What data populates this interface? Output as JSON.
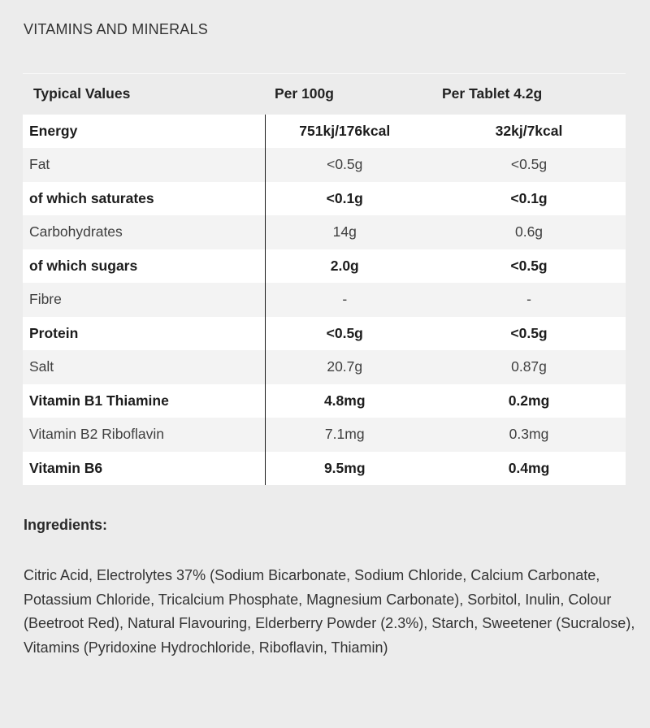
{
  "section_title": "VITAMINS AND MINERALS",
  "table": {
    "headers": [
      "Typical Values",
      "Per 100g",
      "Per Tablet 4.2g"
    ],
    "rows": [
      {
        "name": "Energy",
        "per100": "751kj/176kcal",
        "perTablet": "32kj/7kcal",
        "bold": true
      },
      {
        "name": "Fat",
        "per100": "<0.5g",
        "perTablet": "<0.5g",
        "bold": false
      },
      {
        "name": "of which saturates",
        "per100": "<0.1g",
        "perTablet": "<0.1g",
        "bold": true
      },
      {
        "name": "Carbohydrates",
        "per100": "14g",
        "perTablet": "0.6g",
        "bold": false
      },
      {
        "name": "of which sugars",
        "per100": "2.0g",
        "perTablet": "<0.5g",
        "bold": true
      },
      {
        "name": "Fibre",
        "per100": "-",
        "perTablet": "-",
        "bold": false
      },
      {
        "name": "Protein",
        "per100": "<0.5g",
        "perTablet": "<0.5g",
        "bold": true
      },
      {
        "name": "Salt",
        "per100": "20.7g",
        "perTablet": "0.87g",
        "bold": false
      },
      {
        "name": "Vitamin B1 Thiamine",
        "per100": "4.8mg",
        "perTablet": "0.2mg",
        "bold": true
      },
      {
        "name": "Vitamin B2 Riboflavin",
        "per100": "7.1mg",
        "perTablet": "0.3mg",
        "bold": false
      },
      {
        "name": "Vitamin B6",
        "per100": "9.5mg",
        "perTablet": "0.4mg",
        "bold": true
      }
    ]
  },
  "ingredients": {
    "title": "Ingredients:",
    "text": "Citric Acid, Electrolytes 37% (Sodium Bicarbonate, Sodium Chloride, Calcium Carbonate, Potassium Chloride, Tricalcium Phosphate, Magnesium Carbonate), Sorbitol, Inulin, Colour (Beetroot Red), Natural Flavouring, Elderberry Powder (2.3%), Starch, Sweetener (Sucralose), Vitamins (Pyridoxine Hydrochloride, Riboflavin, Thiamin)"
  }
}
